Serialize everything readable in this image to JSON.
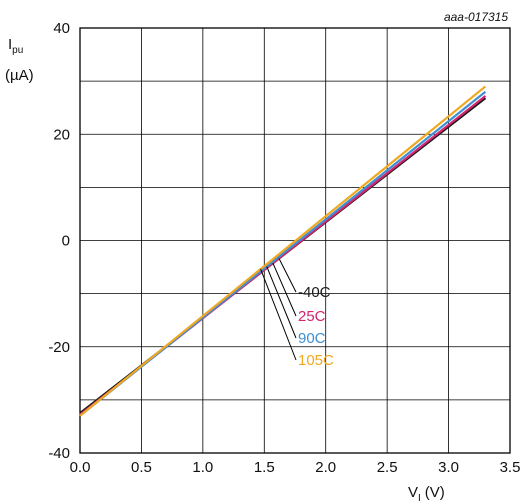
{
  "figure_id": "aaa-017315",
  "chart_data": {
    "type": "line",
    "x_axis": {
      "label_main": "V",
      "label_sub": "I",
      "unit": "(V)",
      "range": [
        0.0,
        3.5
      ],
      "ticks": [
        "0.0",
        "0.5",
        "1.0",
        "1.5",
        "2.0",
        "2.5",
        "3.0",
        "3.5"
      ]
    },
    "y_axis": {
      "label_main": "I",
      "label_sub": "pu",
      "unit": "(µA)",
      "range": [
        -40,
        40
      ],
      "ticks": [
        "-40",
        "-20",
        "0",
        "20",
        "40"
      ]
    },
    "grid": true,
    "legend_position": "center, pointing to curves near x=1.5",
    "series": [
      {
        "name": "-40C",
        "color": "#1a1a1a",
        "x": [
          0.0,
          3.3
        ],
        "y": [
          -32.5,
          26.8
        ]
      },
      {
        "name": "25C",
        "color": "#d6246e",
        "x": [
          0.0,
          3.3
        ],
        "y": [
          -32.8,
          27.2
        ]
      },
      {
        "name": "90C",
        "color": "#3f8fd2",
        "x": [
          0.0,
          3.3
        ],
        "y": [
          -33.0,
          28.0
        ]
      },
      {
        "name": "105C",
        "color": "#f0a81e",
        "x": [
          0.0,
          3.3
        ],
        "y": [
          -33.0,
          29.0
        ]
      }
    ]
  }
}
